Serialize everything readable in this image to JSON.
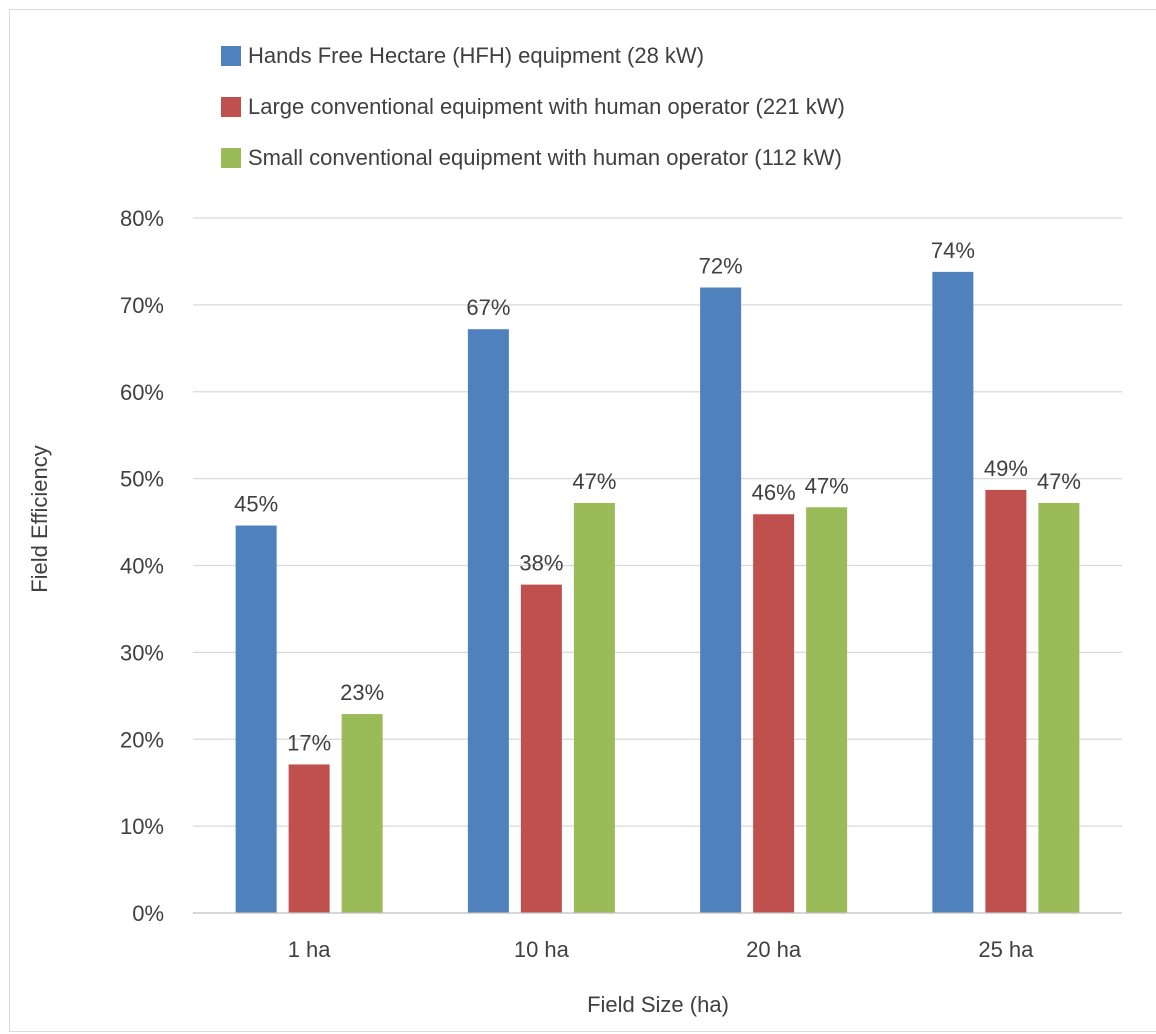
{
  "chart_data": {
    "type": "bar",
    "categories": [
      "1 ha",
      "10 ha",
      "20 ha",
      "25 ha"
    ],
    "series": [
      {
        "name": "Hands Free Hectare (HFH) equipment (28 kW)",
        "values": [
          44.6,
          67.2,
          72.0,
          73.8
        ],
        "labels": [
          "45%",
          "67%",
          "72%",
          "74%"
        ],
        "color": "#4f81bd"
      },
      {
        "name": "Large conventional equipment with human operator (221 kW)",
        "values": [
          17.1,
          37.8,
          45.9,
          48.7
        ],
        "labels": [
          "17%",
          "38%",
          "46%",
          "49%"
        ],
        "color": "#c0504d"
      },
      {
        "name": "Small conventional equipment with human operator (112 kW)",
        "values": [
          22.9,
          47.2,
          46.7,
          47.2
        ],
        "labels": [
          "23%",
          "47%",
          "47%",
          "47%"
        ],
        "color": "#9bbb59"
      }
    ],
    "xlabel": "Field Size (ha)",
    "ylabel": "Field Efficiency",
    "ylim": [
      0,
      80
    ],
    "yticks": [
      "0%",
      "10%",
      "20%",
      "30%",
      "40%",
      "50%",
      "60%",
      "70%",
      "80%"
    ],
    "grid": true,
    "legend_position": "top"
  }
}
